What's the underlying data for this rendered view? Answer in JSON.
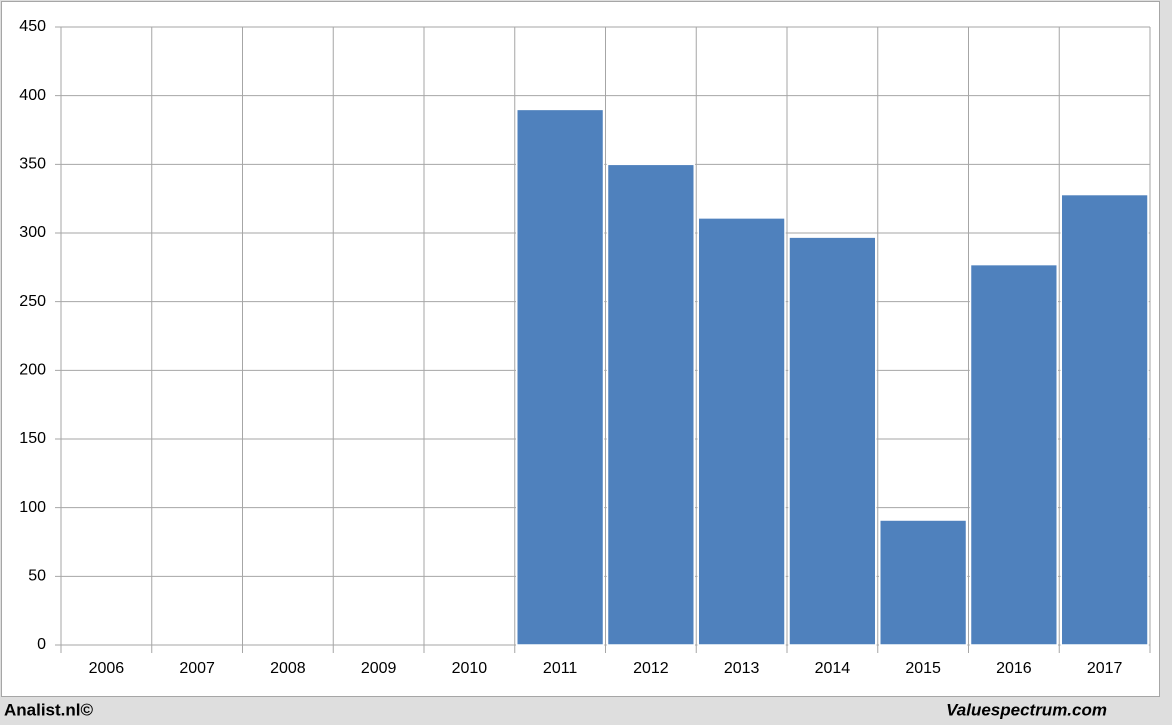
{
  "chart_data": {
    "type": "bar",
    "categories": [
      "2006",
      "2007",
      "2008",
      "2009",
      "2010",
      "2011",
      "2012",
      "2013",
      "2014",
      "2015",
      "2016",
      "2017"
    ],
    "values": [
      null,
      null,
      null,
      null,
      null,
      390,
      350,
      311,
      297,
      91,
      277,
      328
    ],
    "color": "#4f81bd",
    "ylim": [
      0,
      450
    ],
    "yticks": [
      0,
      50,
      100,
      150,
      200,
      250,
      300,
      350,
      400,
      450
    ],
    "grid": true
  },
  "footer": {
    "left": "Analist.nl©",
    "right": "Valuespectrum.com"
  }
}
